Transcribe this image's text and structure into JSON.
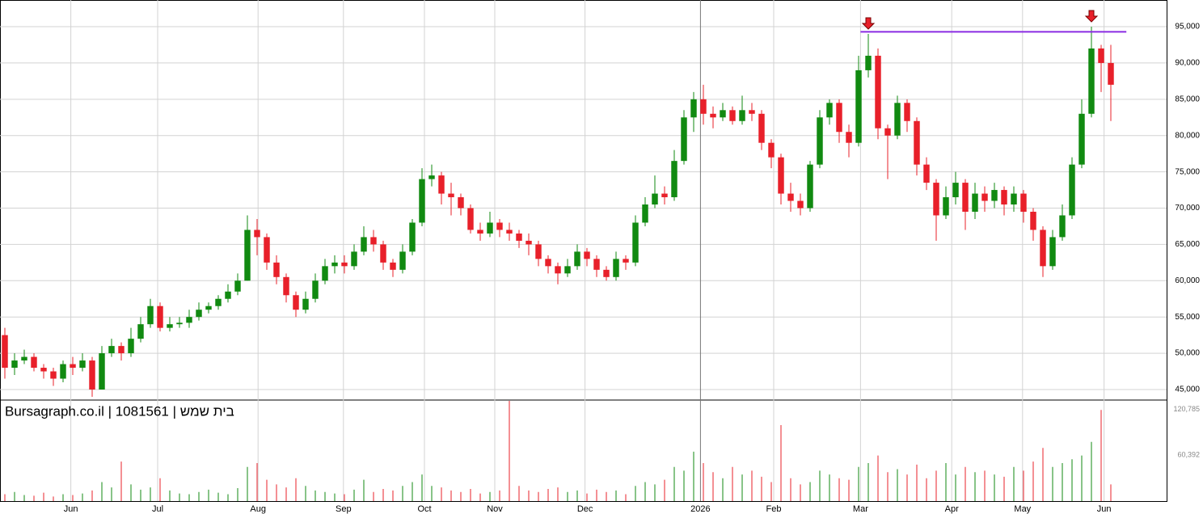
{
  "chart_data": {
    "type": "candlestick",
    "title": "Bursagraph.co.il | 1081561 | בית שמש",
    "up_color": "#118a11",
    "down_color": "#e8202a",
    "open": [
      52500,
      48000,
      49000,
      49500,
      48000,
      47500,
      46500,
      48500,
      48000,
      49000,
      45000,
      50000,
      51000,
      50000,
      52000,
      54000,
      56500,
      53500,
      54000,
      54200,
      55000,
      56000,
      56500,
      57500,
      58500,
      60000,
      67000,
      66000,
      62500,
      60500,
      58000,
      56000,
      57500,
      60000,
      62000,
      62500,
      62000,
      64000,
      66000,
      65000,
      62500,
      61500,
      64000,
      68000,
      74000,
      74500,
      72000,
      71500,
      70000,
      67000,
      66500,
      68000,
      67000,
      66500,
      65500,
      65000,
      63000,
      62000,
      61000,
      62000,
      64000,
      63000,
      61500,
      60500,
      63000,
      62500,
      68000,
      70500,
      72000,
      71500,
      76500,
      82500,
      85000,
      83000,
      82500,
      83500,
      82000,
      83500,
      83000,
      79000,
      77000,
      72000,
      71000,
      70000,
      76000,
      82500,
      84500,
      80500,
      79000,
      89000,
      91000,
      81000,
      80000,
      84500,
      82000,
      76000,
      73500,
      69000,
      71500,
      73500,
      69500,
      72000,
      71000,
      72500,
      70500,
      72000,
      69500,
      67000,
      62000,
      66000,
      69000,
      76000,
      83000,
      92000,
      90000
    ],
    "high": [
      53500,
      50000,
      50500,
      50000,
      48500,
      48000,
      49000,
      49500,
      50000,
      49500,
      51000,
      52000,
      51500,
      53500,
      55000,
      57500,
      57000,
      55000,
      55000,
      56000,
      57000,
      57000,
      58000,
      59500,
      61000,
      69000,
      68500,
      66500,
      63500,
      61000,
      58500,
      58500,
      61000,
      63000,
      63500,
      63500,
      65000,
      67500,
      67000,
      65500,
      63000,
      65000,
      68500,
      75500,
      76000,
      75000,
      73500,
      72000,
      70500,
      68000,
      69500,
      68500,
      68000,
      67000,
      66500,
      65500,
      63500,
      62500,
      63000,
      65000,
      64500,
      63500,
      62000,
      64000,
      63500,
      69000,
      71500,
      74500,
      73000,
      78000,
      83500,
      86000,
      87000,
      84000,
      84500,
      84000,
      85500,
      84500,
      83500,
      79500,
      77500,
      73500,
      72000,
      76500,
      83500,
      85000,
      85000,
      81500,
      91000,
      94000,
      92000,
      81500,
      85500,
      85000,
      82500,
      77000,
      74000,
      73000,
      75000,
      74000,
      73500,
      73000,
      73500,
      73000,
      73000,
      72500,
      70000,
      67500,
      67000,
      70500,
      77000,
      85000,
      95000,
      92500,
      92500
    ],
    "low": [
      46500,
      47000,
      48500,
      47500,
      46500,
      45500,
      46000,
      47000,
      47500,
      44000,
      45000,
      49500,
      49000,
      49500,
      51500,
      53500,
      53000,
      53000,
      53500,
      53500,
      54500,
      55500,
      56000,
      57000,
      58000,
      60000,
      63500,
      61500,
      59500,
      57000,
      55000,
      55500,
      57000,
      59500,
      61000,
      61000,
      61500,
      63500,
      64000,
      61500,
      60500,
      61000,
      63500,
      67500,
      73000,
      70500,
      69000,
      69000,
      66500,
      65500,
      66000,
      66000,
      65500,
      64500,
      63500,
      62000,
      61000,
      59500,
      60500,
      61500,
      62000,
      60500,
      60000,
      60000,
      61500,
      62000,
      67500,
      70000,
      70500,
      71000,
      76000,
      80500,
      81500,
      81000,
      82000,
      81500,
      81500,
      82000,
      78000,
      75500,
      70500,
      69500,
      69000,
      69500,
      75500,
      81500,
      79000,
      77000,
      78500,
      88000,
      79500,
      74000,
      79500,
      80500,
      74500,
      72500,
      65500,
      68500,
      70500,
      67000,
      68500,
      69500,
      70000,
      69000,
      69500,
      68000,
      65500,
      60500,
      61500,
      65500,
      68500,
      75500,
      82500,
      86000,
      82000
    ],
    "close": [
      48000,
      49000,
      49500,
      48000,
      47500,
      46500,
      48500,
      48000,
      49000,
      45000,
      50000,
      51000,
      50000,
      52000,
      54000,
      56500,
      53500,
      54000,
      54200,
      55000,
      56000,
      56500,
      57500,
      58500,
      60000,
      67000,
      66000,
      62500,
      60500,
      58000,
      56000,
      57500,
      60000,
      62000,
      62500,
      62000,
      64000,
      66000,
      65000,
      62500,
      61500,
      64000,
      68000,
      74000,
      74500,
      72000,
      71500,
      70000,
      67000,
      66500,
      68000,
      67000,
      66500,
      65500,
      65000,
      63000,
      62000,
      61000,
      62000,
      64000,
      63000,
      61500,
      60500,
      63000,
      62500,
      68000,
      70500,
      72000,
      71500,
      76500,
      82500,
      85000,
      83000,
      82500,
      83500,
      82000,
      83500,
      83000,
      79000,
      77000,
      72000,
      71000,
      70000,
      76000,
      82500,
      84500,
      80500,
      79000,
      89000,
      91000,
      81000,
      80000,
      84500,
      82000,
      76000,
      73500,
      69000,
      71500,
      73500,
      69500,
      72000,
      71000,
      72500,
      70500,
      72000,
      69500,
      67000,
      62000,
      66000,
      69000,
      76000,
      83000,
      92000,
      90000,
      87000
    ],
    "volume": [
      9000,
      12000,
      8000,
      7000,
      11000,
      6000,
      9000,
      8000,
      10000,
      14000,
      25000,
      18000,
      52000,
      22000,
      15000,
      18000,
      30000,
      14000,
      10000,
      9000,
      12000,
      15000,
      11000,
      9000,
      17000,
      45000,
      50000,
      28000,
      22000,
      18000,
      30000,
      20000,
      14000,
      12000,
      10000,
      9000,
      15000,
      28000,
      12000,
      16000,
      14000,
      20000,
      25000,
      35000,
      20000,
      18000,
      14000,
      12000,
      16000,
      10000,
      12000,
      14000,
      132000,
      20000,
      14000,
      12000,
      16000,
      18000,
      12000,
      14000,
      10000,
      15000,
      12000,
      14000,
      9000,
      20000,
      25000,
      22000,
      28000,
      45000,
      40000,
      65000,
      50000,
      38000,
      30000,
      45000,
      35000,
      40000,
      32000,
      25000,
      100000,
      30000,
      22000,
      25000,
      40000,
      35000,
      30000,
      28000,
      45000,
      50000,
      60000,
      38000,
      42000,
      35000,
      48000,
      30000,
      40000,
      50000,
      35000,
      45000,
      38000,
      40000,
      35000,
      32000,
      45000,
      40000,
      52000,
      70000,
      45000,
      50000,
      55000,
      60000,
      78000,
      120000,
      22000
    ],
    "xlim": [
      -0.5,
      119.5
    ],
    "xticks": [
      {
        "value": 6.8,
        "label": "Jun"
      },
      {
        "value": 15.75,
        "label": "Jul"
      },
      {
        "value": 26.1,
        "label": "Aug"
      },
      {
        "value": 34.9,
        "label": "Sep"
      },
      {
        "value": 43.25,
        "label": "Oct"
      },
      {
        "value": 50.5,
        "label": "Nov"
      },
      {
        "value": 59.8,
        "label": "Dec"
      },
      {
        "value": 71.7,
        "label": "2026"
      },
      {
        "value": 79.25,
        "label": "Feb"
      },
      {
        "value": 88.2,
        "label": "Mar"
      },
      {
        "value": 97.6,
        "label": "Apr"
      },
      {
        "value": 104.9,
        "label": "May"
      },
      {
        "value": 113.3,
        "label": "Jun"
      }
    ],
    "ylim": [
      43550,
      98680
    ],
    "yticks": [
      {
        "value": 45000,
        "label": "45,000"
      },
      {
        "value": 50000,
        "label": "50,000"
      },
      {
        "value": 55000,
        "label": "55,000"
      },
      {
        "value": 60000,
        "label": "60,000"
      },
      {
        "value": 65000,
        "label": "65,000"
      },
      {
        "value": 70000,
        "label": "70,000"
      },
      {
        "value": 75000,
        "label": "75,000"
      },
      {
        "value": 80000,
        "label": "80,000"
      },
      {
        "value": 85000,
        "label": "85,000"
      },
      {
        "value": 90000,
        "label": "90,000"
      },
      {
        "value": 95000,
        "label": "95,000"
      }
    ],
    "volume_ylim": [
      0,
      133000
    ],
    "volume_yticks": [
      {
        "value": 60392,
        "label": "60,392"
      },
      {
        "value": 120785,
        "label": "120,785"
      }
    ],
    "grid": true,
    "resistance_line": {
      "value": 94300,
      "from": 88.2,
      "to": 115.6,
      "color": "#8a2be2"
    },
    "arrows": {
      "at": [
        89,
        112
      ],
      "color": "#e8202a"
    }
  }
}
